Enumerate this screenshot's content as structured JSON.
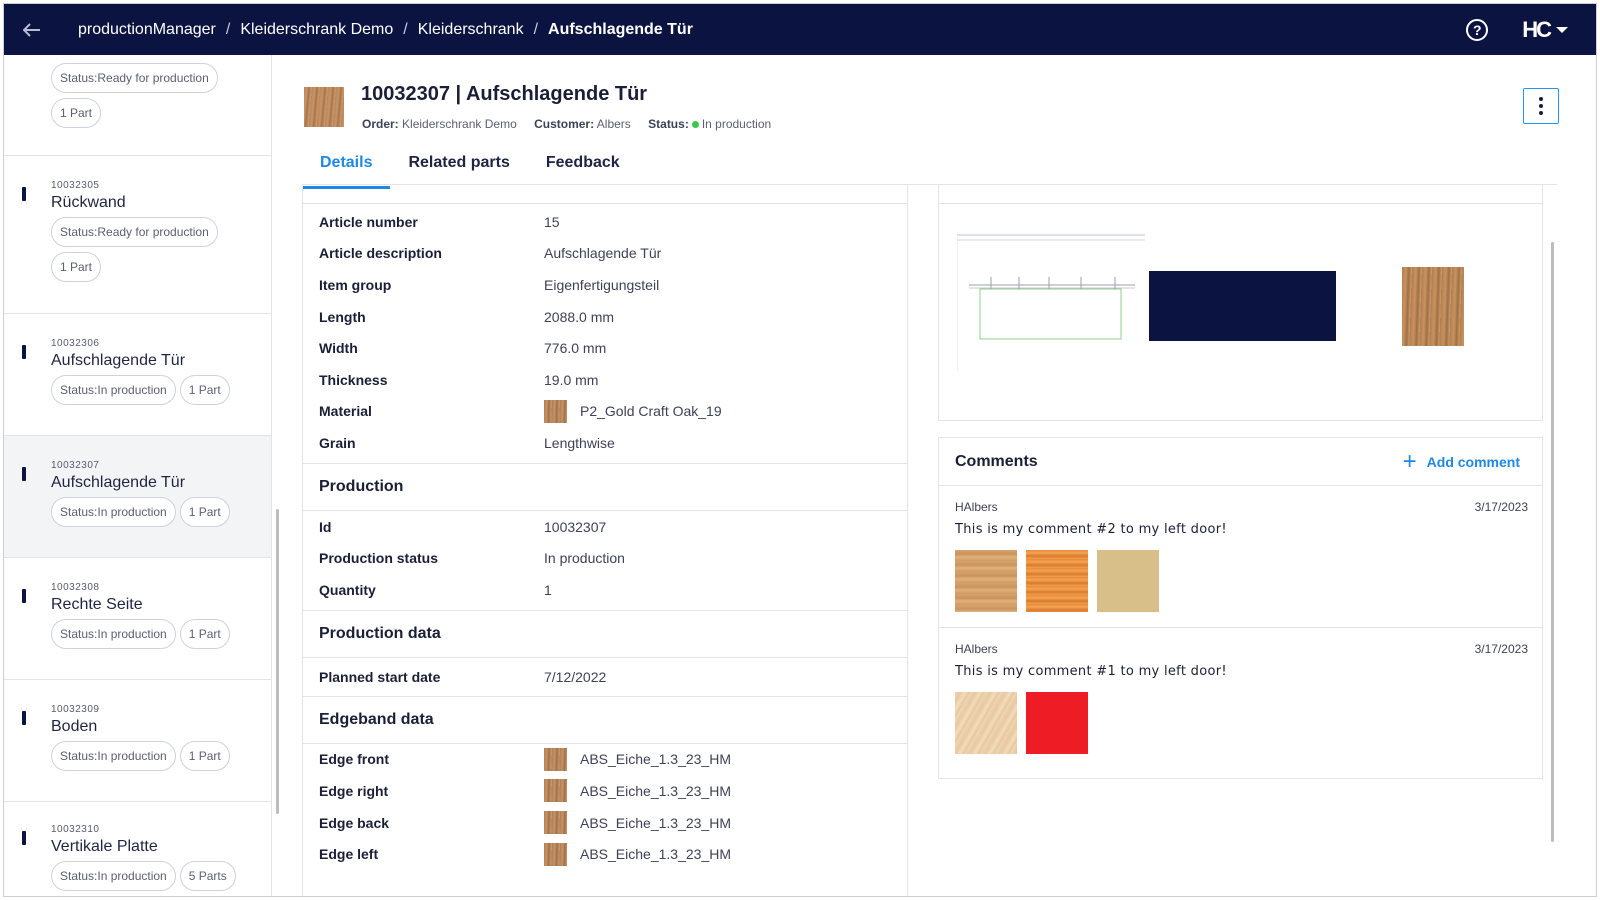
{
  "topbar": {
    "breadcrumbs": [
      "productionManager",
      "Kleiderschrank Demo",
      "Kleiderschrank",
      "Aufschlagende Tür"
    ],
    "help_label": "?",
    "brand_label": "HC",
    "background_color": "#0b1440"
  },
  "sidebar": {
    "partial_top": {
      "status": "Status:Ready for production",
      "parts": "1 Part"
    },
    "items": [
      {
        "number": "10032305",
        "name": "Rückwand",
        "status": "Status:Ready for production",
        "parts": "1 Part"
      },
      {
        "number": "10032306",
        "name": "Aufschlagende Tür",
        "status": "Status:In production",
        "parts": "1 Part"
      },
      {
        "number": "10032307",
        "name": "Aufschlagende Tür",
        "status": "Status:In production",
        "parts": "1 Part"
      },
      {
        "number": "10032308",
        "name": "Rechte Seite",
        "status": "Status:In production",
        "parts": "1 Part"
      },
      {
        "number": "10032309",
        "name": "Boden",
        "status": "Status:In production",
        "parts": "1 Part"
      },
      {
        "number": "10032310",
        "name": "Vertikale Platte",
        "status": "Status:In production",
        "parts": "5 Parts"
      }
    ]
  },
  "header": {
    "title": "10032307 | Aufschlagende Tür",
    "order_label": "Order:",
    "order_value": "Kleiderschrank Demo",
    "customer_label": "Customer:",
    "customer_value": "Albers",
    "status_label": "Status:",
    "status_value": "In production",
    "status_color": "#37c84a"
  },
  "tabs": [
    "Details",
    "Related parts",
    "Feedback"
  ],
  "details": {
    "general": [
      {
        "label": "Article number",
        "value": "15"
      },
      {
        "label": "Article description",
        "value": "Aufschlagende Tür"
      },
      {
        "label": "Item group",
        "value": "Eigenfertigungsteil"
      },
      {
        "label": "Length",
        "value": "2088.0 mm"
      },
      {
        "label": "Width",
        "value": "776.0 mm"
      },
      {
        "label": "Thickness",
        "value": "19.0 mm"
      },
      {
        "label": "Material",
        "value": "P2_Gold Craft Oak_19"
      },
      {
        "label": "Grain",
        "value": "Lengthwise"
      }
    ],
    "production_title": "Production",
    "production": [
      {
        "label": "Id",
        "value": "10032307"
      },
      {
        "label": "Production status",
        "value": "In production"
      },
      {
        "label": "Quantity",
        "value": "1"
      }
    ],
    "production_data_title": "Production data",
    "production_data": [
      {
        "label": "Planned start date",
        "value": "7/12/2022"
      }
    ],
    "edgeband_title": "Edgeband data",
    "edgeband": [
      {
        "label": "Edge front",
        "value": "ABS_Eiche_1.3_23_HM"
      },
      {
        "label": "Edge right",
        "value": "ABS_Eiche_1.3_23_HM"
      },
      {
        "label": "Edge back",
        "value": "ABS_Eiche_1.3_23_HM"
      },
      {
        "label": "Edge left",
        "value": "ABS_Eiche_1.3_23_HM"
      }
    ]
  },
  "comments": {
    "title": "Comments",
    "add_label": "Add comment",
    "items": [
      {
        "user": "HAlbers",
        "date": "3/17/2023",
        "text": "This is my comment #2 to my left door!"
      },
      {
        "user": "HAlbers",
        "date": "3/17/2023",
        "text": "This is my comment #1 to my left door!"
      }
    ]
  }
}
